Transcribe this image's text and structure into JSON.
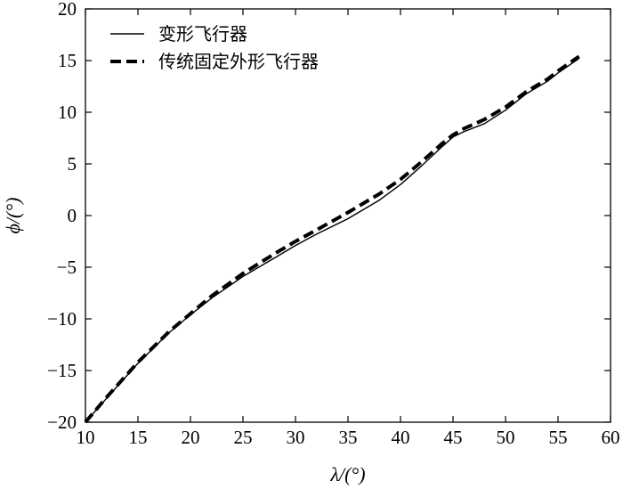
{
  "chart_data": {
    "type": "line",
    "xlabel": "λ/(°)",
    "ylabel": "ϕ/(°)",
    "xlim": [
      10,
      60
    ],
    "ylim": [
      -20,
      20
    ],
    "xticks": [
      10,
      15,
      20,
      25,
      30,
      35,
      40,
      45,
      50,
      55,
      60
    ],
    "yticks": [
      -20,
      -15,
      -10,
      -5,
      0,
      5,
      10,
      15,
      20
    ],
    "grid": false,
    "legend_position": "top-left",
    "series": [
      {
        "name": "变形飞行器",
        "style": "solid",
        "color": "#000000",
        "x": [
          10,
          12,
          15,
          18,
          20,
          22,
          25,
          28,
          30,
          32,
          35,
          38,
          40,
          42,
          44,
          45,
          46,
          48,
          50,
          52,
          54,
          55,
          57
        ],
        "y": [
          -20,
          -17.7,
          -14.3,
          -11.3,
          -9.6,
          -8,
          -5.9,
          -4.1,
          -2.9,
          -1.8,
          -0.3,
          1.5,
          3.0,
          4.8,
          6.7,
          7.6,
          8.1,
          8.9,
          10.2,
          11.8,
          13.0,
          13.8,
          15.2
        ]
      },
      {
        "name": "传统固定外形飞行器",
        "style": "dashed",
        "color": "#000000",
        "x": [
          10,
          12,
          15,
          18,
          20,
          22,
          25,
          28,
          30,
          32,
          35,
          38,
          40,
          42,
          44,
          45,
          46,
          48,
          50,
          52,
          54,
          55,
          57
        ],
        "y": [
          -20,
          -17.6,
          -14.2,
          -11.2,
          -9.5,
          -7.8,
          -5.6,
          -3.7,
          -2.5,
          -1.4,
          0.3,
          2.1,
          3.5,
          5.2,
          7.0,
          7.8,
          8.4,
          9.3,
          10.5,
          12.0,
          13.2,
          14.0,
          15.4
        ]
      }
    ]
  }
}
